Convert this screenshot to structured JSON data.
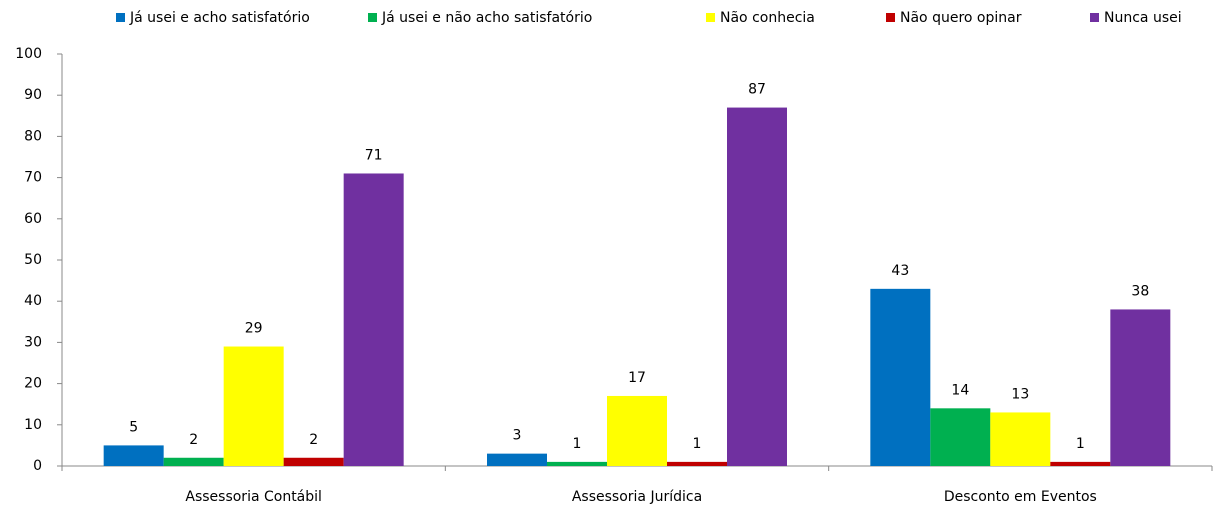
{
  "chart_data": {
    "type": "bar",
    "categories": [
      "Assessoria Contábil",
      "Assessoria Jurídica",
      "Desconto em Eventos"
    ],
    "series": [
      {
        "name": "Já usei e acho satisfatório",
        "color": "#0070c0",
        "values": [
          5,
          3,
          43
        ]
      },
      {
        "name": "Já usei e não acho satisfatório",
        "color": "#00b050",
        "values": [
          2,
          1,
          14
        ]
      },
      {
        "name": "Não conhecia",
        "color": "#ffff00",
        "values": [
          29,
          17,
          13
        ]
      },
      {
        "name": "Não quero opinar",
        "color": "#c00000",
        "values": [
          2,
          1,
          1
        ]
      },
      {
        "name": "Nunca usei",
        "color": "#7030a0",
        "values": [
          71,
          87,
          38
        ]
      }
    ],
    "ylim": [
      0,
      100
    ],
    "yticks": [
      0,
      10,
      20,
      30,
      40,
      50,
      60,
      70,
      80,
      90,
      100
    ],
    "grid": false,
    "legend": "top"
  }
}
